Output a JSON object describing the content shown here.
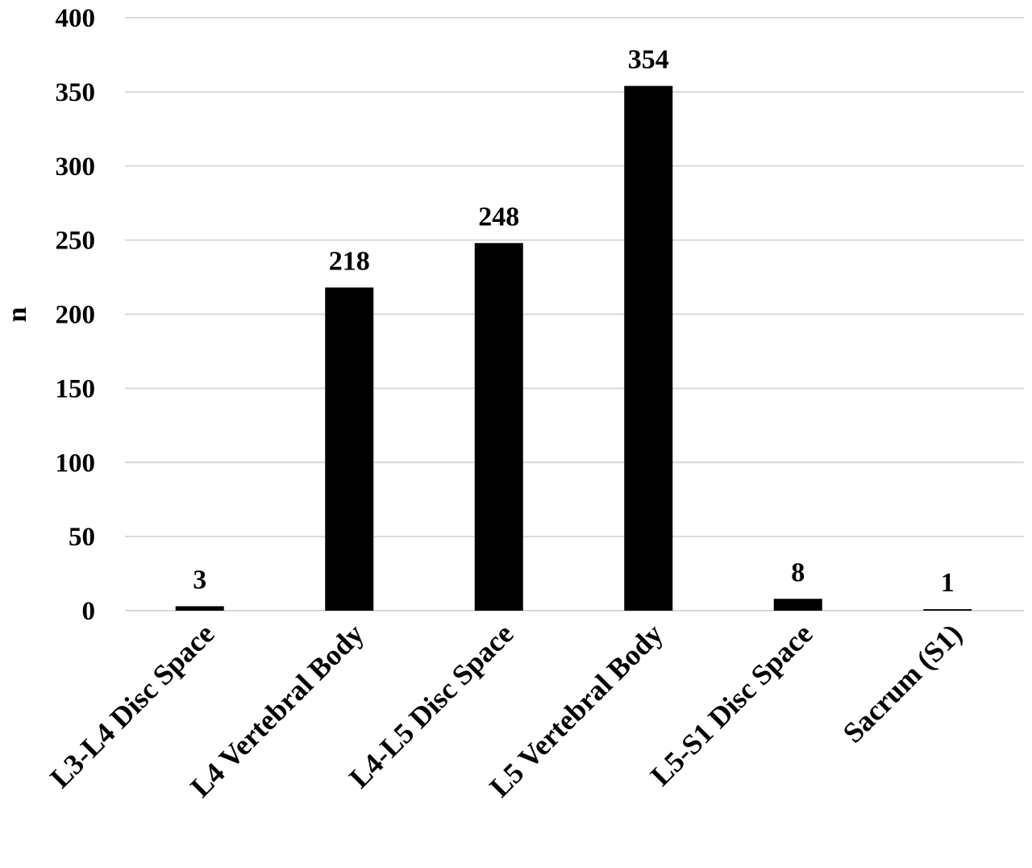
{
  "chart_data": {
    "type": "bar",
    "title": "",
    "xlabel": "",
    "ylabel": "n",
    "categories": [
      "L3-L4 Disc Space",
      "L4 Vertebral Body",
      "L4-L5 Disc Space",
      "L5 Vertebral Body",
      "L5-S1 Disc Space",
      "Sacrum (S1)"
    ],
    "values": [
      3,
      218,
      248,
      354,
      8,
      1
    ],
    "data_labels": [
      "3",
      "218",
      "248",
      "354",
      "8",
      "1"
    ],
    "ylim": [
      0,
      400
    ],
    "yticks": [
      "0",
      "50",
      "100",
      "150",
      "200",
      "250",
      "300",
      "350",
      "400"
    ],
    "grid": true,
    "legend": "none",
    "bar_color": "#000000",
    "grid_color": "#d9d9d9"
  }
}
